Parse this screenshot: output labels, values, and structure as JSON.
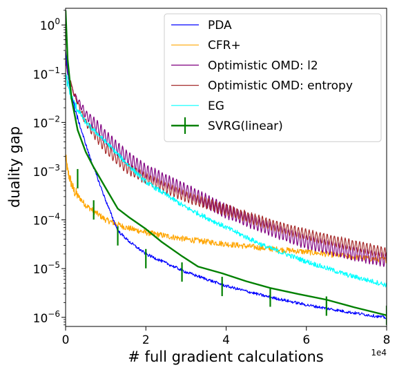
{
  "chart_data": {
    "type": "line",
    "xlabel": "# full gradient calculations",
    "ylabel": "duality gap",
    "x_scale_label": "1e4",
    "xlim": [
      0,
      8
    ],
    "ylim": [
      6.5e-07,
      2.2
    ],
    "yscale": "log",
    "grid": false,
    "legend_position": "top-right",
    "x_ticks": [
      {
        "value": 0,
        "label": "0"
      },
      {
        "value": 2,
        "label": "2"
      },
      {
        "value": 4,
        "label": "4"
      },
      {
        "value": 6,
        "label": "6"
      },
      {
        "value": 8,
        "label": "8"
      }
    ],
    "y_ticks": [
      {
        "value": 1e-06,
        "base": "10",
        "exp": "−6"
      },
      {
        "value": 1e-05,
        "base": "10",
        "exp": "−5"
      },
      {
        "value": 0.0001,
        "base": "10",
        "exp": "−4"
      },
      {
        "value": 0.001,
        "base": "10",
        "exp": "−3"
      },
      {
        "value": 0.01,
        "base": "10",
        "exp": "−2"
      },
      {
        "value": 0.1,
        "base": "10",
        "exp": "−1"
      },
      {
        "value": 1,
        "base": "10",
        "exp": "0"
      }
    ],
    "series": [
      {
        "name": "PDA",
        "color": "#0000ff",
        "style": "noisy",
        "noise_dex": 0.06,
        "x": [
          0,
          0.1,
          0.3,
          0.6,
          1.0,
          1.3,
          1.6,
          2.0,
          2.5,
          3.0,
          4.0,
          5.0,
          6.0,
          7.0,
          8.0
        ],
        "y": [
          0.3,
          0.05,
          0.012,
          0.002,
          0.00025,
          6e-05,
          3.5e-05,
          2e-05,
          1.3e-05,
          8.5e-06,
          4.4e-06,
          2.7e-06,
          1.8e-06,
          1.3e-06,
          9.8e-07
        ]
      },
      {
        "name": "CFR+",
        "color": "#ffa500",
        "style": "noisy",
        "noise_dex": 0.12,
        "x": [
          0,
          0.05,
          0.2,
          0.5,
          1.0,
          1.5,
          2.0,
          3.0,
          4.0,
          5.0,
          6.0,
          7.0,
          8.0
        ],
        "y": [
          0.002,
          0.001,
          0.0004,
          0.0002,
          0.0001,
          7e-05,
          5.5e-05,
          4e-05,
          3.2e-05,
          2.6e-05,
          2.2e-05,
          1.8e-05,
          1.5e-05
        ]
      },
      {
        "name": "Optimistic OMD: l2",
        "color": "#800080",
        "style": "oscillating",
        "amp_dex": 0.14,
        "x": [
          0,
          0.05,
          0.2,
          0.5,
          1.0,
          1.5,
          2.0,
          3.0,
          4.0,
          5.0,
          6.0,
          7.0,
          8.0
        ],
        "y": [
          0.2,
          0.1,
          0.04,
          0.015,
          0.005,
          0.002,
          0.001,
          0.0004,
          0.00015,
          7e-05,
          3.5e-05,
          2.2e-05,
          1.5e-05
        ]
      },
      {
        "name": "Optimistic OMD: entropy",
        "color": "#a52a2a",
        "style": "oscillating",
        "amp_dex": 0.11,
        "x": [
          0,
          0.05,
          0.2,
          0.5,
          1.0,
          1.5,
          2.0,
          3.0,
          4.0,
          5.0,
          6.0,
          7.0,
          8.0
        ],
        "y": [
          0.3,
          0.12,
          0.04,
          0.01,
          0.003,
          0.0012,
          0.0007,
          0.0003,
          0.00016,
          8.5e-05,
          5e-05,
          3.2e-05,
          2.1e-05
        ]
      },
      {
        "name": "EG",
        "color": "#00ffff",
        "style": "noisy",
        "noise_dex": 0.1,
        "x": [
          0,
          0.05,
          0.2,
          0.5,
          1.0,
          1.5,
          2.0,
          3.0,
          4.0,
          5.0,
          6.0,
          7.0,
          8.0
        ],
        "y": [
          0.1,
          0.06,
          0.025,
          0.01,
          0.004,
          0.0015,
          0.0006,
          0.00018,
          7e-05,
          2.8e-05,
          1.4e-05,
          7.5e-06,
          4.6e-06
        ]
      },
      {
        "name": "SVRG(linear)",
        "color": "#008000",
        "style": "errorbar",
        "x": [
          0,
          0.05,
          0.15,
          0.3,
          0.5,
          0.7,
          1.0,
          1.3,
          1.6,
          2.0,
          2.4,
          2.9,
          3.3,
          3.9,
          4.5,
          5.1,
          5.8,
          6.5,
          7.2,
          8.0
        ],
        "y": [
          2.0,
          0.2,
          0.03,
          0.007,
          0.0025,
          0.0012,
          0.00045,
          0.00017,
          0.00011,
          6.5e-05,
          3.5e-05,
          1.8e-05,
          1.1e-05,
          8e-06,
          5.5e-06,
          4e-06,
          3e-06,
          2.3e-06,
          1.6e-06,
          1.1e-06
        ],
        "errorbar_x": [
          0.3,
          0.7,
          1.3,
          2.0,
          2.9,
          3.9,
          5.1,
          6.5,
          8.0
        ],
        "errorbar_y": [
          0.0007,
          0.00016,
          4.7e-05,
          1.6e-05,
          8.5e-06,
          4.3e-06,
          2.6e-06,
          1.7e-06,
          1.1e-06
        ]
      }
    ]
  }
}
